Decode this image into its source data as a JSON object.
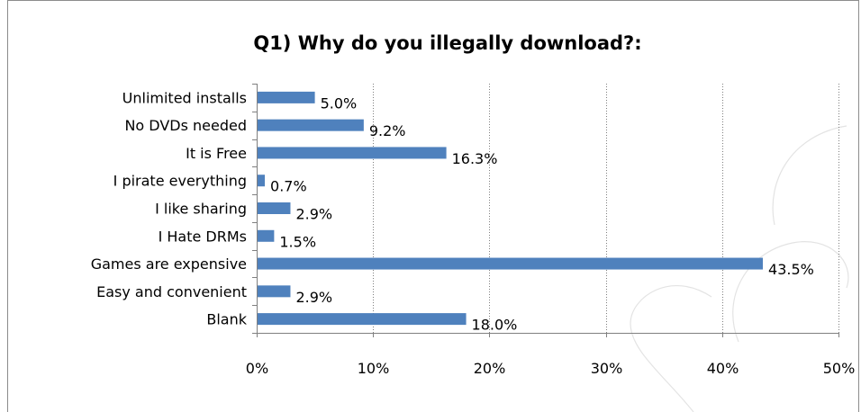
{
  "chart_data": {
    "type": "bar",
    "orientation": "horizontal",
    "title": "Q1) Why do you illegally download?:",
    "categories": [
      "Unlimited installs",
      "No DVDs needed",
      "It is Free",
      "I pirate everything",
      "I like sharing",
      "I Hate DRMs",
      "Games are expensive",
      "Easy and convenient",
      "Blank"
    ],
    "values": [
      5.0,
      9.2,
      16.3,
      0.7,
      2.9,
      1.5,
      43.5,
      2.9,
      18.0
    ],
    "value_labels": [
      "5.0%",
      "9.2%",
      "16.3%",
      "0.7%",
      "2.9%",
      "1.5%",
      "43.5%",
      "2.9%",
      "18.0%"
    ],
    "xlim": [
      0,
      50
    ],
    "x_ticks": [
      0,
      10,
      20,
      30,
      40,
      50
    ],
    "x_tick_labels": [
      "0%",
      "10%",
      "20%",
      "30%",
      "40%",
      "50%"
    ],
    "xlabel": "",
    "ylabel": "",
    "grid": "vertical dotted",
    "legend": "none",
    "bar_color": "#4f81bd"
  }
}
